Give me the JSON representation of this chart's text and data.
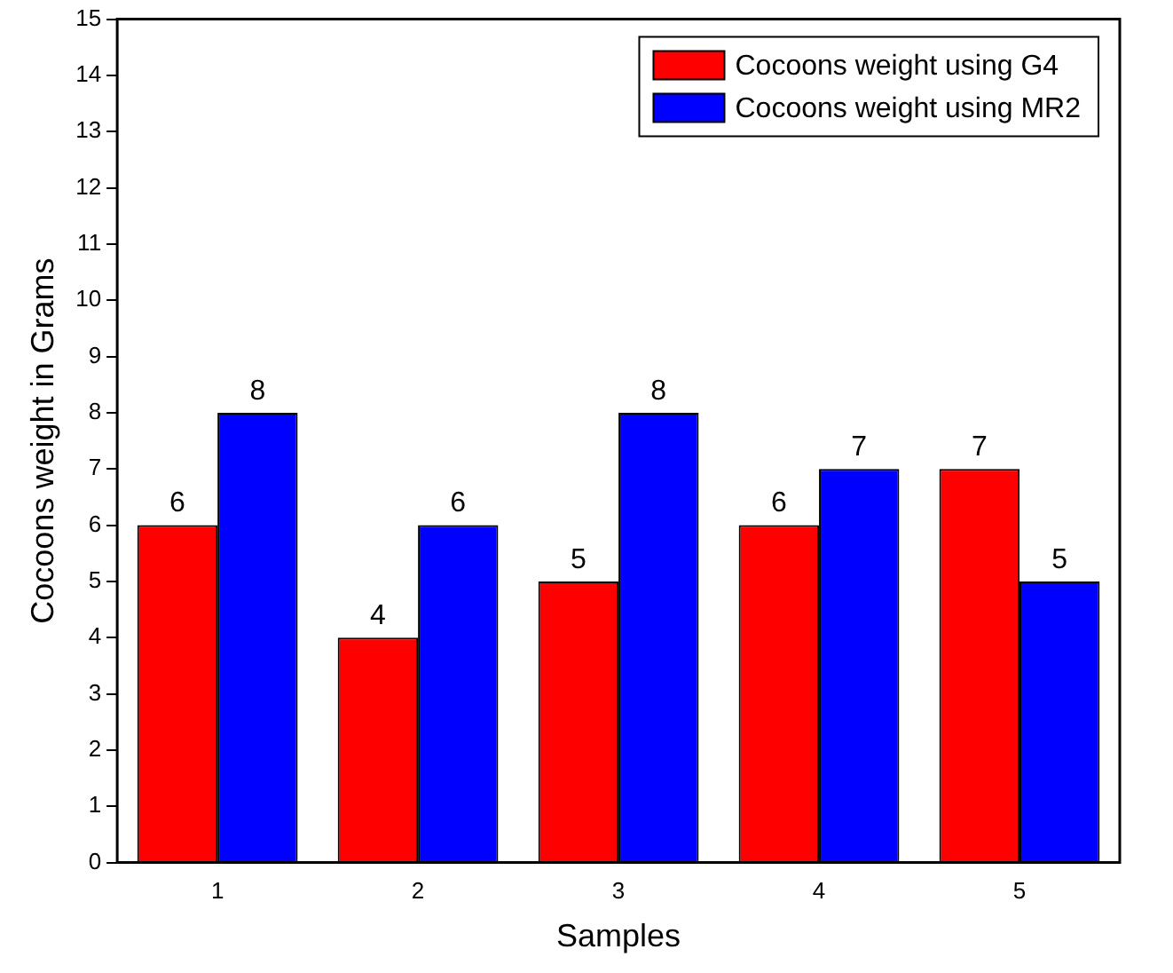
{
  "chart_data": {
    "type": "bar",
    "xlabel": "Samples",
    "ylabel": "Cocoons weight in Grams",
    "categories": [
      "1",
      "2",
      "3",
      "4",
      "5"
    ],
    "series": [
      {
        "name": "Cocoons weight using G4",
        "color": "#ff0000",
        "values": [
          6,
          4,
          5,
          6,
          7
        ]
      },
      {
        "name": "Cocoons weight using MR2",
        "color": "#0000ff",
        "values": [
          8,
          6,
          8,
          7,
          5
        ]
      }
    ],
    "ylim": [
      0,
      15
    ],
    "yticks": [
      0,
      1,
      2,
      3,
      4,
      5,
      6,
      7,
      8,
      9,
      10,
      11,
      12,
      13,
      14,
      15
    ],
    "data_labels": true,
    "legend": "top right",
    "grid": false
  }
}
